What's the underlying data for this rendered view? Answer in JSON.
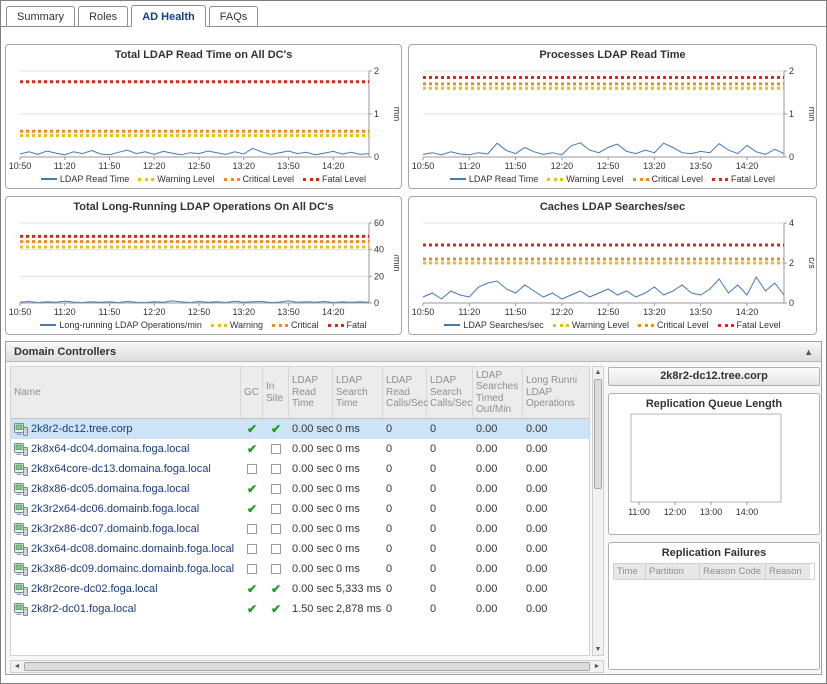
{
  "tabs": [
    {
      "label": "Summary",
      "active": false
    },
    {
      "label": "Roles",
      "active": false
    },
    {
      "label": "AD Health",
      "active": true
    },
    {
      "label": "FAQs",
      "active": false
    }
  ],
  "icons": {
    "collapse": "▲",
    "scroll_up": "▲",
    "scroll_down": "▼",
    "scroll_left": "◄",
    "scroll_right": "►",
    "check": "✔"
  },
  "colors": {
    "series_line": "#4679b2",
    "warning": "#e3c01c",
    "critical": "#ef8a1e",
    "fatal": "#d42a1e",
    "selected_row": "#cde4f7",
    "link_text": "#1c3c78",
    "check_green": "#1e9e1e"
  },
  "chart_data": [
    {
      "type": "line",
      "title": "Total LDAP Read Time on All DC's",
      "ylabel": "min",
      "ylim": [
        0,
        2
      ],
      "yticks": [
        0,
        1,
        2
      ],
      "x_labels": [
        "10:50",
        "11:20",
        "11:50",
        "12:20",
        "12:50",
        "13:20",
        "13:50",
        "14:20"
      ],
      "label_every": 5,
      "series": [
        {
          "name": "LDAP Read Time",
          "type": "line",
          "color": "#4679b2",
          "values": [
            0.07,
            0.12,
            0.06,
            0.14,
            0.09,
            0.05,
            0.12,
            0.08,
            0.15,
            0.07,
            0.05,
            0.11,
            0.16,
            0.08,
            0.12,
            0.06,
            0.13,
            0.09,
            0.05,
            0.1,
            0.08,
            0.14,
            0.1,
            0.06,
            0.12,
            0.07,
            0.2,
            0.12,
            0.06,
            0.1,
            0.14,
            0.08,
            0.11,
            0.05,
            0.09,
            0.13,
            0.07,
            0.11,
            0.06,
            0.08
          ]
        },
        {
          "name": "Warning Level",
          "type": "threshold",
          "color": "#e3c01c",
          "value": 0.5
        },
        {
          "name": "Critical Level",
          "type": "threshold",
          "color": "#ef8a1e",
          "value": 0.6
        },
        {
          "name": "Fatal Level",
          "type": "threshold",
          "color": "#d42a1e",
          "value": 1.75
        }
      ]
    },
    {
      "type": "line",
      "title": "Processes LDAP Read Time",
      "ylabel": "min",
      "ylim": [
        0,
        2
      ],
      "yticks": [
        0,
        1,
        2
      ],
      "x_labels": [
        "10:50",
        "11:20",
        "11:50",
        "12:20",
        "12:50",
        "13:20",
        "13:50",
        "14:20"
      ],
      "label_every": 5,
      "series": [
        {
          "name": "LDAP Read Time",
          "type": "line",
          "color": "#4679b2",
          "values": [
            0.06,
            0.1,
            0.05,
            0.12,
            0.07,
            0.05,
            0.1,
            0.07,
            0.32,
            0.15,
            0.08,
            0.22,
            0.12,
            0.06,
            0.1,
            0.05,
            0.26,
            0.33,
            0.16,
            0.1,
            0.22,
            0.3,
            0.13,
            0.08,
            0.16,
            0.1,
            0.32,
            0.22,
            0.1,
            0.08,
            0.13,
            0.1,
            0.31,
            0.16,
            0.08,
            0.27,
            0.12,
            0.06,
            0.18,
            0.08
          ]
        },
        {
          "name": "Warning Level",
          "type": "threshold",
          "color": "#e3c01c",
          "value": 1.6
        },
        {
          "name": "Critical Level",
          "type": "threshold",
          "color": "#ef8a1e",
          "value": 1.7
        },
        {
          "name": "Fatal Level",
          "type": "threshold",
          "color": "#d42a1e",
          "value": 1.85
        }
      ]
    },
    {
      "type": "line",
      "title": "Total Long-Running LDAP Operations On All DC's",
      "ylabel": "/min",
      "ylim": [
        0,
        60
      ],
      "yticks": [
        0,
        20,
        40,
        60
      ],
      "x_labels": [
        "10:50",
        "11:20",
        "11:50",
        "12:20",
        "12:50",
        "13:20",
        "13:50",
        "14:20"
      ],
      "label_every": 5,
      "series": [
        {
          "name": "Long-running LDAP Operations/min",
          "type": "line",
          "color": "#4679b2",
          "values": [
            0.6,
            1.1,
            0.4,
            0.9,
            0.5,
            1.3,
            0.7,
            0.4,
            1.0,
            0.5,
            0.9,
            0.4,
            1.1,
            0.6,
            0.4,
            0.9,
            0.5,
            1.6,
            0.8,
            0.4,
            1.1,
            0.6,
            0.9,
            0.4,
            1.3,
            0.5,
            0.9,
            1.1,
            0.4,
            0.7,
            1.6,
            0.5,
            0.9,
            0.6,
            1.1,
            0.4,
            0.8,
            0.5,
            1.0,
            0.6
          ]
        },
        {
          "name": "Warning",
          "type": "threshold",
          "color": "#e3c01c",
          "value": 42
        },
        {
          "name": "Critical",
          "type": "threshold",
          "color": "#ef8a1e",
          "value": 46
        },
        {
          "name": "Fatal",
          "type": "threshold",
          "color": "#d42a1e",
          "value": 50
        }
      ]
    },
    {
      "type": "line",
      "title": "Caches LDAP Searches/sec",
      "ylabel": "c/s",
      "ylim": [
        0,
        4
      ],
      "yticks": [
        0,
        2,
        4
      ],
      "x_labels": [
        "10:50",
        "11:20",
        "11:50",
        "12:20",
        "12:50",
        "13:20",
        "13:50",
        "14:20"
      ],
      "label_every": 5,
      "series": [
        {
          "name": "LDAP Searches/sec",
          "type": "line",
          "color": "#4679b2",
          "values": [
            0.3,
            0.5,
            0.2,
            0.6,
            0.4,
            0.3,
            0.8,
            1.0,
            1.1,
            0.7,
            0.5,
            0.9,
            0.6,
            0.3,
            0.5,
            0.2,
            0.4,
            0.6,
            0.3,
            0.5,
            0.7,
            0.4,
            0.6,
            0.3,
            0.5,
            0.8,
            0.4,
            0.6,
            0.9,
            0.5,
            0.4,
            0.7,
            1.2,
            0.5,
            0.9,
            0.4,
            1.3,
            0.6,
            1.0,
            0.4
          ]
        },
        {
          "name": "Warning Level",
          "type": "threshold",
          "color": "#e3c01c",
          "value": 2.0
        },
        {
          "name": "Critical Level",
          "type": "threshold",
          "color": "#ef8a1e",
          "value": 2.2
        },
        {
          "name": "Fatal Level",
          "type": "threshold",
          "color": "#d42a1e",
          "value": 2.9
        }
      ]
    },
    {
      "type": "empty",
      "title": "Replication Queue Length",
      "x_labels": [
        "11:00",
        "12:00",
        "13:00",
        "14:00"
      ],
      "series": []
    }
  ],
  "domain_controllers": {
    "panel_title": "Domain Controllers",
    "columns": [
      "Name",
      "GC",
      "In Site",
      "LDAP Read Time",
      "LDAP Search Time",
      "LDAP Read Calls/Sec",
      "LDAP Search Calls/Sec",
      "LDAP Searches Timed Out/Min",
      "Long Runni LDAP Operations"
    ],
    "rows": [
      {
        "name": "2k8r2-dc12.tree.corp",
        "gc": true,
        "in_site": true,
        "ldap_read_time": "0.00 sec",
        "ldap_search_time": "0 ms",
        "ldap_read_calls_sec": "0",
        "ldap_search_calls_sec": "0",
        "ldap_searches_timed_out_min": "0.00",
        "long_running_ldap_operations": "0.00",
        "selected": true
      },
      {
        "name": "2k8x64-dc04.domaina.foga.local",
        "gc": true,
        "in_site": false,
        "ldap_read_time": "0.00 sec",
        "ldap_search_time": "0 ms",
        "ldap_read_calls_sec": "0",
        "ldap_search_calls_sec": "0",
        "ldap_searches_timed_out_min": "0.00",
        "long_running_ldap_operations": "0.00",
        "selected": false
      },
      {
        "name": "2k8x64core-dc13.domaina.foga.local",
        "gc": false,
        "in_site": false,
        "ldap_read_time": "0.00 sec",
        "ldap_search_time": "0 ms",
        "ldap_read_calls_sec": "0",
        "ldap_search_calls_sec": "0",
        "ldap_searches_timed_out_min": "0.00",
        "long_running_ldap_operations": "0.00",
        "selected": false
      },
      {
        "name": "2k8x86-dc05.domaina.foga.local",
        "gc": true,
        "in_site": false,
        "ldap_read_time": "0.00 sec",
        "ldap_search_time": "0 ms",
        "ldap_read_calls_sec": "0",
        "ldap_search_calls_sec": "0",
        "ldap_searches_timed_out_min": "0.00",
        "long_running_ldap_operations": "0.00",
        "selected": false
      },
      {
        "name": "2k3r2x64-dc06.domainb.foga.local",
        "gc": true,
        "in_site": false,
        "ldap_read_time": "0.00 sec",
        "ldap_search_time": "0 ms",
        "ldap_read_calls_sec": "0",
        "ldap_search_calls_sec": "0",
        "ldap_searches_timed_out_min": "0.00",
        "long_running_ldap_operations": "0.00",
        "selected": false
      },
      {
        "name": "2k3r2x86-dc07.domainb.foga.local",
        "gc": false,
        "in_site": false,
        "ldap_read_time": "0.00 sec",
        "ldap_search_time": "0 ms",
        "ldap_read_calls_sec": "0",
        "ldap_search_calls_sec": "0",
        "ldap_searches_timed_out_min": "0.00",
        "long_running_ldap_operations": "0.00",
        "selected": false
      },
      {
        "name": "2k3x64-dc08.domainc.domainb.foga.local",
        "gc": false,
        "in_site": false,
        "ldap_read_time": "0.00 sec",
        "ldap_search_time": "0 ms",
        "ldap_read_calls_sec": "0",
        "ldap_search_calls_sec": "0",
        "ldap_searches_timed_out_min": "0.00",
        "long_running_ldap_operations": "0.00",
        "selected": false
      },
      {
        "name": "2k3x86-dc09.domainc.domainb.foga.local",
        "gc": false,
        "in_site": false,
        "ldap_read_time": "0.00 sec",
        "ldap_search_time": "0 ms",
        "ldap_read_calls_sec": "0",
        "ldap_search_calls_sec": "0",
        "ldap_searches_timed_out_min": "0.00",
        "long_running_ldap_operations": "0.00",
        "selected": false
      },
      {
        "name": "2k8r2core-dc02.foga.local",
        "gc": true,
        "in_site": true,
        "ldap_read_time": "0.00 sec",
        "ldap_search_time": "5,333 ms",
        "ldap_read_calls_sec": "0",
        "ldap_search_calls_sec": "0",
        "ldap_searches_timed_out_min": "0.00",
        "long_running_ldap_operations": "0.00",
        "selected": false
      },
      {
        "name": "2k8r2-dc01.foga.local",
        "gc": true,
        "in_site": true,
        "ldap_read_time": "1.50 sec",
        "ldap_search_time": "2,878 ms",
        "ldap_read_calls_sec": "0",
        "ldap_search_calls_sec": "0",
        "ldap_searches_timed_out_min": "0.00",
        "long_running_ldap_operations": "0.00",
        "selected": false
      }
    ]
  },
  "detail": {
    "title": "2k8r2-dc12.tree.corp",
    "replication_failures": {
      "title": "Replication Failures",
      "columns": [
        "Time",
        "Partition",
        "Reason Code",
        "Reason"
      ]
    }
  }
}
